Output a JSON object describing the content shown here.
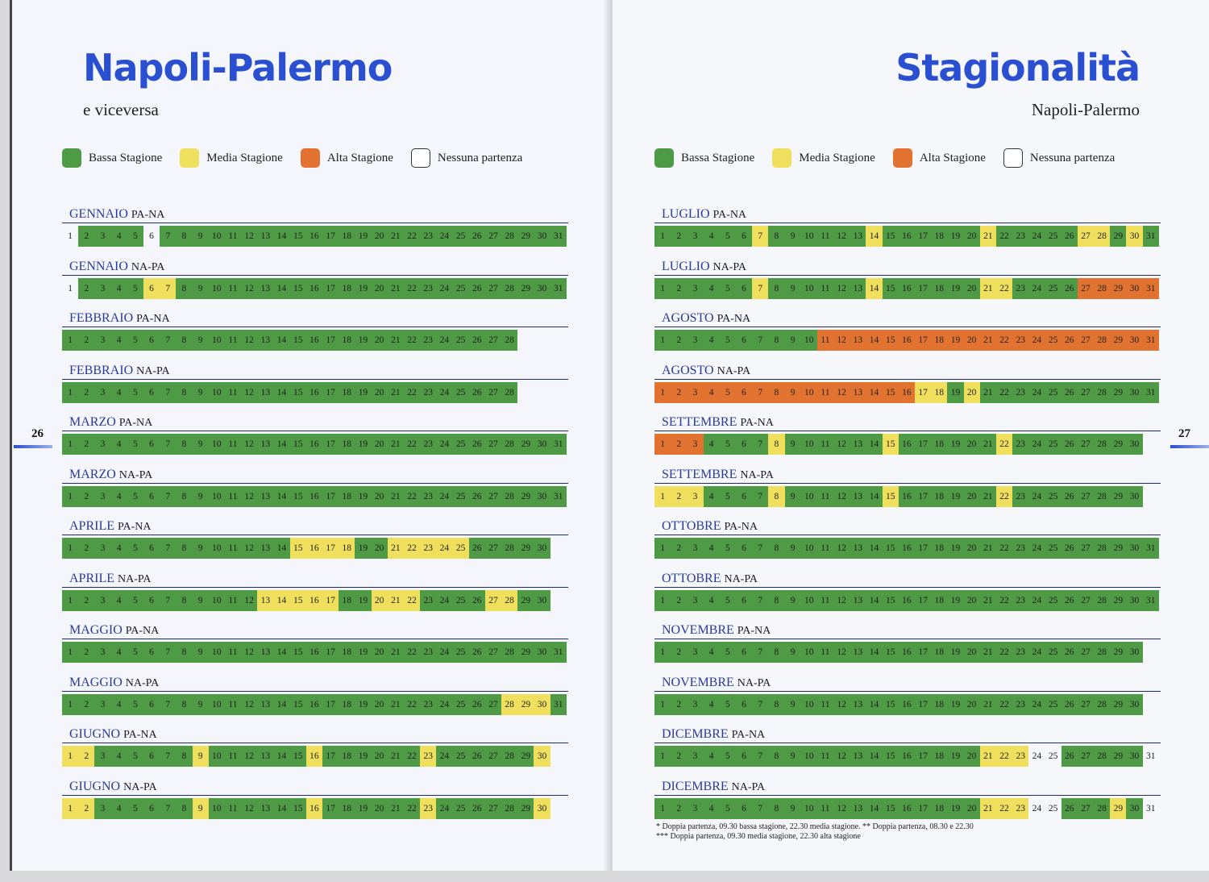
{
  "left": {
    "title": "Napoli-Palermo",
    "subtitle": "e viceversa",
    "page_number": "26",
    "legend": [
      {
        "label": "Bassa Stagione",
        "color": "#4f9a45"
      },
      {
        "label": "Media Stagione",
        "color": "#f0df5c"
      },
      {
        "label": "Alta Stagione",
        "color": "#e2722f"
      },
      {
        "label": "Nessuna partenza",
        "color": "#ffffff"
      }
    ],
    "months": [
      {
        "name": "GENNAIO",
        "dir": "PA-NA",
        "days": 31,
        "runs": "n1,b2-5,n6,b7-31"
      },
      {
        "name": "GENNAIO",
        "dir": "NA-PA",
        "days": 31,
        "runs": "n1,b2-5,m6-7,b8-31"
      },
      {
        "name": "FEBBRAIO",
        "dir": "PA-NA",
        "days": 28,
        "runs": "b1-28"
      },
      {
        "name": "FEBBRAIO",
        "dir": "NA-PA",
        "days": 28,
        "runs": "b1-28"
      },
      {
        "name": "MARZO",
        "dir": "PA-NA",
        "days": 31,
        "runs": "b1-31"
      },
      {
        "name": "MARZO",
        "dir": "NA-PA",
        "days": 31,
        "runs": "b1-31"
      },
      {
        "name": "APRILE",
        "dir": "PA-NA",
        "days": 30,
        "runs": "b1-14,m15-18,b19-20,m21-25,b26-30"
      },
      {
        "name": "APRILE",
        "dir": "NA-PA",
        "days": 30,
        "runs": "b1-12,m13-17,b18-19,m20-22,b23-26,m27-28,b29-30"
      },
      {
        "name": "MAGGIO",
        "dir": "PA-NA",
        "days": 31,
        "runs": "b1-31"
      },
      {
        "name": "MAGGIO",
        "dir": "NA-PA",
        "days": 31,
        "runs": "b1-27,m28-30,b31"
      },
      {
        "name": "GIUGNO",
        "dir": "PA-NA",
        "days": 30,
        "runs": "m1-2,b3-8,m9,b10-15,m16,b17-22,m23,b24-29,m30"
      },
      {
        "name": "GIUGNO",
        "dir": "NA-PA",
        "days": 30,
        "runs": "m1-2,b3-8,m9,b10-15,m16,b17-22,m23,b24-29,m30"
      }
    ]
  },
  "right": {
    "title": "Stagionalità",
    "subtitle": "Napoli-Palermo",
    "page_number": "27",
    "legend": [
      {
        "label": "Bassa Stagione",
        "color": "#4f9a45"
      },
      {
        "label": "Media Stagione",
        "color": "#f0df5c"
      },
      {
        "label": "Alta Stagione",
        "color": "#e2722f"
      },
      {
        "label": "Nessuna partenza",
        "color": "#ffffff"
      }
    ],
    "months": [
      {
        "name": "LUGLIO",
        "dir": "PA-NA",
        "days": 31,
        "runs": "b1-6,m7,b8-13,m14,b15-20,m21,b22-26,m27-28,b29,m30,b31"
      },
      {
        "name": "LUGLIO",
        "dir": "NA-PA",
        "days": 31,
        "runs": "b1-6,m7,b8-13,m14,b15-20,m21-22,b23-26,a27-31"
      },
      {
        "name": "AGOSTO",
        "dir": "PA-NA",
        "days": 31,
        "runs": "b1-10,a11-31"
      },
      {
        "name": "AGOSTO",
        "dir": "NA-PA",
        "days": 31,
        "runs": "a1-16,m17-18,b19,m20,b21-31"
      },
      {
        "name": "SETTEMBRE",
        "dir": "PA-NA",
        "days": 30,
        "runs": "a1-3,b4-7,m8,b9-14,m15,b16-21,m22,b23-30"
      },
      {
        "name": "SETTEMBRE",
        "dir": "NA-PA",
        "days": 30,
        "runs": "m1-3,b4-7,m8,b9-14,m15,b16-21,m22,b23-30"
      },
      {
        "name": "OTTOBRE",
        "dir": "PA-NA",
        "days": 31,
        "runs": "b1-31"
      },
      {
        "name": "OTTOBRE",
        "dir": "NA-PA",
        "days": 31,
        "runs": "b1-31"
      },
      {
        "name": "NOVEMBRE",
        "dir": "PA-NA",
        "days": 30,
        "runs": "b1-30"
      },
      {
        "name": "NOVEMBRE",
        "dir": "NA-PA",
        "days": 30,
        "runs": "b1-30"
      },
      {
        "name": "DICEMBRE",
        "dir": "PA-NA",
        "days": 31,
        "runs": "b1-20,m21-23,n24-25,b26-30,n31"
      },
      {
        "name": "DICEMBRE",
        "dir": "NA-PA",
        "days": 31,
        "runs": "b1-20,m21-23,n24-25,b26-28,m29,b30,n31"
      }
    ],
    "footnotes": [
      "* Doppia partenza, 09.30 bassa stagione, 22.30 media stagione. ** Doppia partenza, 08.30 e 22.30",
      "*** Doppia partenza, 09.30 media stagione, 22.30 alta stagione"
    ]
  }
}
